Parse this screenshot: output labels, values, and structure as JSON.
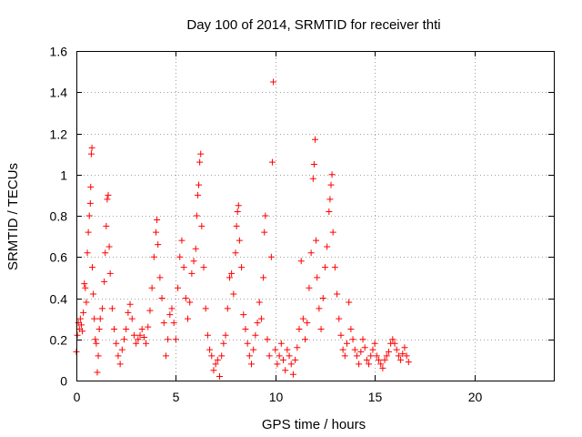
{
  "chart_data": {
    "type": "scatter",
    "title": "Day 100 of 2014, SRMTID for receiver thti",
    "xlabel": "GPS time / hours",
    "ylabel": "SRMTID / TECUs",
    "xlim": [
      0,
      24
    ],
    "ylim": [
      0,
      1.6
    ],
    "xticks": [
      0,
      5,
      10,
      15,
      20
    ],
    "xtick_labels": [
      "0",
      "5",
      "10",
      "15",
      "20"
    ],
    "yticks": [
      0,
      0.2,
      0.4,
      0.6,
      0.8,
      1.0,
      1.2,
      1.4,
      1.6
    ],
    "ytick_labels": [
      "0",
      "0.2",
      "0.4",
      "0.6",
      "0.8",
      "1",
      "1.2",
      "1.4",
      "1.6"
    ],
    "grid": true,
    "marker": "+",
    "series": [
      {
        "name": "SRMTID",
        "color": "#ff0000",
        "points": [
          [
            0.0,
            0.14
          ],
          [
            0.05,
            0.22
          ],
          [
            0.1,
            0.28
          ],
          [
            0.15,
            0.25
          ],
          [
            0.2,
            0.3
          ],
          [
            0.25,
            0.27
          ],
          [
            0.3,
            0.24
          ],
          [
            0.35,
            0.33
          ],
          [
            0.4,
            0.47
          ],
          [
            0.45,
            0.45
          ],
          [
            0.5,
            0.38
          ],
          [
            0.55,
            0.62
          ],
          [
            0.6,
            0.72
          ],
          [
            0.65,
            0.8
          ],
          [
            0.7,
            0.86
          ],
          [
            0.72,
            0.94
          ],
          [
            0.75,
            1.1
          ],
          [
            0.78,
            1.13
          ],
          [
            0.8,
            0.55
          ],
          [
            0.85,
            0.42
          ],
          [
            0.9,
            0.3
          ],
          [
            0.95,
            0.2
          ],
          [
            1.0,
            0.18
          ],
          [
            1.05,
            0.04
          ],
          [
            1.1,
            0.12
          ],
          [
            1.15,
            0.25
          ],
          [
            1.2,
            0.3
          ],
          [
            1.3,
            0.35
          ],
          [
            1.4,
            0.48
          ],
          [
            1.45,
            0.62
          ],
          [
            1.5,
            0.75
          ],
          [
            1.55,
            0.88
          ],
          [
            1.6,
            0.9
          ],
          [
            1.65,
            0.65
          ],
          [
            1.7,
            0.52
          ],
          [
            1.8,
            0.35
          ],
          [
            1.9,
            0.25
          ],
          [
            2.0,
            0.18
          ],
          [
            2.1,
            0.12
          ],
          [
            2.2,
            0.08
          ],
          [
            2.3,
            0.15
          ],
          [
            2.4,
            0.2
          ],
          [
            2.5,
            0.25
          ],
          [
            2.6,
            0.33
          ],
          [
            2.7,
            0.37
          ],
          [
            2.8,
            0.3
          ],
          [
            2.9,
            0.22
          ],
          [
            3.0,
            0.18
          ],
          [
            3.1,
            0.2
          ],
          [
            3.2,
            0.22
          ],
          [
            3.3,
            0.25
          ],
          [
            3.4,
            0.21
          ],
          [
            3.5,
            0.18
          ],
          [
            3.6,
            0.26
          ],
          [
            3.7,
            0.34
          ],
          [
            3.8,
            0.45
          ],
          [
            3.9,
            0.6
          ],
          [
            4.0,
            0.72
          ],
          [
            4.05,
            0.78
          ],
          [
            4.1,
            0.66
          ],
          [
            4.2,
            0.5
          ],
          [
            4.3,
            0.4
          ],
          [
            4.4,
            0.28
          ],
          [
            4.5,
            0.12
          ],
          [
            4.6,
            0.2
          ],
          [
            4.7,
            0.32
          ],
          [
            4.8,
            0.35
          ],
          [
            4.9,
            0.28
          ],
          [
            5.0,
            0.2
          ],
          [
            5.1,
            0.45
          ],
          [
            5.2,
            0.6
          ],
          [
            5.3,
            0.68
          ],
          [
            5.4,
            0.55
          ],
          [
            5.5,
            0.4
          ],
          [
            5.6,
            0.3
          ],
          [
            5.7,
            0.38
          ],
          [
            5.8,
            0.52
          ],
          [
            5.9,
            0.58
          ],
          [
            6.0,
            0.64
          ],
          [
            6.05,
            0.8
          ],
          [
            6.1,
            0.9
          ],
          [
            6.15,
            0.95
          ],
          [
            6.2,
            1.06
          ],
          [
            6.25,
            1.1
          ],
          [
            6.3,
            0.75
          ],
          [
            6.4,
            0.55
          ],
          [
            6.5,
            0.35
          ],
          [
            6.6,
            0.22
          ],
          [
            6.7,
            0.15
          ],
          [
            6.8,
            0.12
          ],
          [
            6.9,
            0.05
          ],
          [
            7.0,
            0.08
          ],
          [
            7.1,
            0.1
          ],
          [
            7.2,
            0.02
          ],
          [
            7.3,
            0.12
          ],
          [
            7.4,
            0.18
          ],
          [
            7.5,
            0.22
          ],
          [
            7.6,
            0.35
          ],
          [
            7.7,
            0.5
          ],
          [
            7.8,
            0.52
          ],
          [
            7.9,
            0.42
          ],
          [
            8.0,
            0.62
          ],
          [
            8.05,
            0.75
          ],
          [
            8.1,
            0.82
          ],
          [
            8.15,
            0.85
          ],
          [
            8.2,
            0.68
          ],
          [
            8.3,
            0.55
          ],
          [
            8.4,
            0.32
          ],
          [
            8.5,
            0.25
          ],
          [
            8.6,
            0.18
          ],
          [
            8.7,
            0.12
          ],
          [
            8.8,
            0.08
          ],
          [
            8.9,
            0.15
          ],
          [
            9.0,
            0.22
          ],
          [
            9.1,
            0.28
          ],
          [
            9.2,
            0.38
          ],
          [
            9.3,
            0.3
          ],
          [
            9.4,
            0.5
          ],
          [
            9.45,
            0.72
          ],
          [
            9.5,
            0.8
          ],
          [
            9.6,
            0.2
          ],
          [
            9.7,
            0.12
          ],
          [
            9.8,
            0.6
          ],
          [
            9.85,
            1.06
          ],
          [
            9.9,
            1.45
          ],
          [
            10.0,
            0.15
          ],
          [
            10.1,
            0.08
          ],
          [
            10.2,
            0.12
          ],
          [
            10.3,
            0.18
          ],
          [
            10.4,
            0.1
          ],
          [
            10.5,
            0.05
          ],
          [
            10.6,
            0.15
          ],
          [
            10.7,
            0.12
          ],
          [
            10.8,
            0.08
          ],
          [
            10.9,
            0.03
          ],
          [
            11.0,
            0.1
          ],
          [
            11.1,
            0.16
          ],
          [
            11.2,
            0.25
          ],
          [
            11.3,
            0.58
          ],
          [
            11.4,
            0.3
          ],
          [
            11.5,
            0.2
          ],
          [
            11.6,
            0.28
          ],
          [
            11.7,
            0.45
          ],
          [
            11.8,
            0.62
          ],
          [
            11.9,
            0.98
          ],
          [
            11.95,
            1.05
          ],
          [
            12.0,
            1.17
          ],
          [
            12.05,
            0.68
          ],
          [
            12.1,
            0.5
          ],
          [
            12.2,
            0.35
          ],
          [
            12.3,
            0.25
          ],
          [
            12.4,
            0.4
          ],
          [
            12.5,
            0.55
          ],
          [
            12.6,
            0.65
          ],
          [
            12.7,
            0.82
          ],
          [
            12.75,
            0.88
          ],
          [
            12.8,
            0.95
          ],
          [
            12.85,
            1.0
          ],
          [
            12.9,
            0.72
          ],
          [
            13.0,
            0.55
          ],
          [
            13.1,
            0.42
          ],
          [
            13.2,
            0.3
          ],
          [
            13.3,
            0.22
          ],
          [
            13.4,
            0.15
          ],
          [
            13.5,
            0.12
          ],
          [
            13.6,
            0.18
          ],
          [
            13.7,
            0.38
          ],
          [
            13.8,
            0.25
          ],
          [
            13.9,
            0.2
          ],
          [
            14.0,
            0.15
          ],
          [
            14.1,
            0.12
          ],
          [
            14.2,
            0.08
          ],
          [
            14.3,
            0.14
          ],
          [
            14.4,
            0.2
          ],
          [
            14.5,
            0.16
          ],
          [
            14.6,
            0.1
          ],
          [
            14.7,
            0.08
          ],
          [
            14.8,
            0.12
          ],
          [
            14.9,
            0.15
          ],
          [
            15.0,
            0.18
          ],
          [
            15.1,
            0.12
          ],
          [
            15.2,
            0.1
          ],
          [
            15.3,
            0.08
          ],
          [
            15.4,
            0.06
          ],
          [
            15.5,
            0.1
          ],
          [
            15.6,
            0.12
          ],
          [
            15.7,
            0.14
          ],
          [
            15.8,
            0.18
          ],
          [
            15.9,
            0.2
          ],
          [
            16.0,
            0.18
          ],
          [
            16.1,
            0.15
          ],
          [
            16.2,
            0.12
          ],
          [
            16.3,
            0.1
          ],
          [
            16.4,
            0.13
          ],
          [
            16.5,
            0.16
          ],
          [
            16.6,
            0.12
          ],
          [
            16.7,
            0.09
          ]
        ]
      }
    ]
  }
}
